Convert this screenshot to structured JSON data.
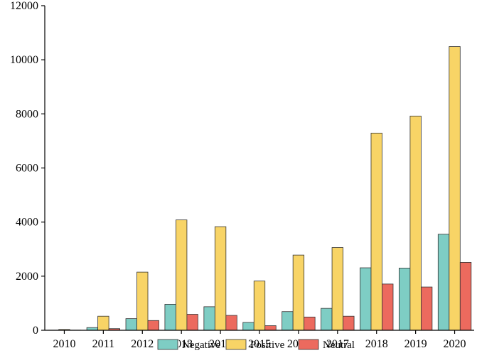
{
  "chart_data": {
    "type": "bar",
    "title": "",
    "xlabel": "",
    "ylabel": "",
    "categories": [
      "2010",
      "2011",
      "2012",
      "2013",
      "2014",
      "2015",
      "2016",
      "2017",
      "2018",
      "2019",
      "2020"
    ],
    "series": [
      {
        "name": "Negative",
        "color": "#7ecdc4",
        "values": [
          5,
          100,
          430,
          960,
          870,
          290,
          690,
          810,
          2310,
          2300,
          3550
        ]
      },
      {
        "name": "Positive",
        "color": "#f8d466",
        "values": [
          30,
          520,
          2150,
          4080,
          3830,
          1820,
          2780,
          3060,
          7290,
          7920,
          10490
        ]
      },
      {
        "name": "Neutral",
        "color": "#ec6a5e",
        "values": [
          5,
          60,
          360,
          590,
          550,
          170,
          490,
          520,
          1710,
          1600,
          2510
        ]
      }
    ],
    "ylim": [
      0,
      12000
    ],
    "yticks": [
      0,
      2000,
      4000,
      6000,
      8000,
      10000,
      12000
    ],
    "grid": false,
    "legend": "bottom-center"
  }
}
